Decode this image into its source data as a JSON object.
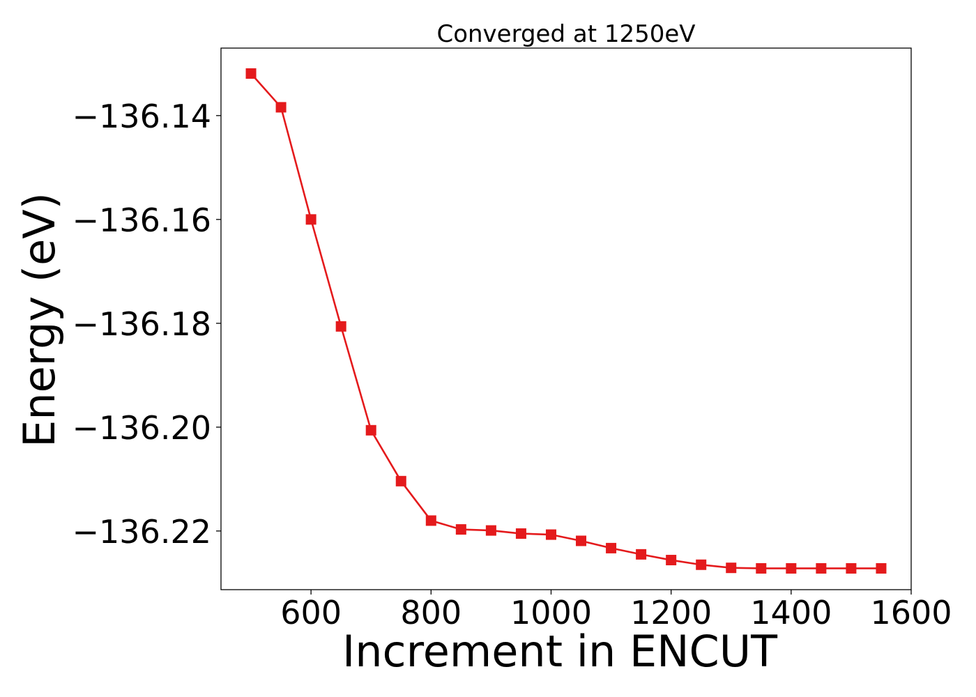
{
  "chart_data": {
    "type": "line",
    "title": "Converged at 1250eV",
    "xlabel": "Increment in ENCUT",
    "ylabel": "Energy (eV)",
    "xlim": [
      450,
      1600
    ],
    "ylim": [
      -136.2313,
      -136.127
    ],
    "xticks": [
      {
        "value": 600,
        "label": "600"
      },
      {
        "value": 800,
        "label": "800"
      },
      {
        "value": 1000,
        "label": "1000"
      },
      {
        "value": 1200,
        "label": "1200"
      },
      {
        "value": 1400,
        "label": "1400"
      },
      {
        "value": 1600,
        "label": "1600"
      }
    ],
    "yticks": [
      {
        "value": -136.14,
        "label": "−136.14"
      },
      {
        "value": -136.16,
        "label": "−136.16"
      },
      {
        "value": -136.18,
        "label": "−136.18"
      },
      {
        "value": -136.2,
        "label": "−136.20"
      },
      {
        "value": -136.22,
        "label": "−136.22"
      }
    ],
    "grid": false,
    "marker": "square",
    "color": "#e41a1c",
    "series": [
      {
        "x": [
          500,
          550,
          600,
          650,
          700,
          750,
          800,
          850,
          900,
          950,
          1000,
          1050,
          1100,
          1150,
          1200,
          1250,
          1300,
          1350,
          1400,
          1450,
          1500,
          1550
        ],
        "y": [
          -136.1319,
          -136.1384,
          -136.16,
          -136.1806,
          -136.2006,
          -136.2104,
          -136.218,
          -136.2197,
          -136.2199,
          -136.2205,
          -136.2207,
          -136.2219,
          -136.2233,
          -136.2245,
          -136.2256,
          -136.2265,
          -136.2271,
          -136.2272,
          -136.2272,
          -136.2272,
          -136.2272,
          -136.2272
        ]
      }
    ]
  }
}
